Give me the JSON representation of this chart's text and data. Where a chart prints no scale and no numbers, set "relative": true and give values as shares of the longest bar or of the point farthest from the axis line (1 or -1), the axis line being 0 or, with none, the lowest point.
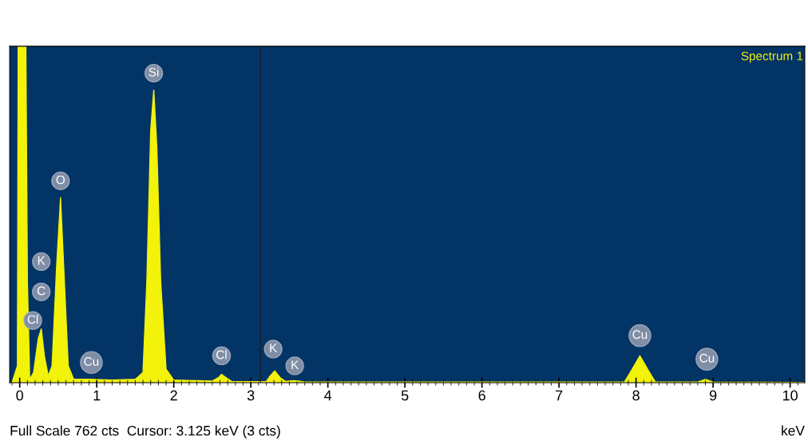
{
  "chart_data": {
    "type": "area",
    "relative": true,
    "xlabel": "keV",
    "color": "#f2f20a",
    "xlim": [
      -0.13,
      10.19
    ],
    "xticks": [
      0,
      1,
      2,
      3,
      4,
      5,
      6,
      7,
      8,
      9,
      10
    ],
    "x": [
      -0.1,
      -0.03,
      -0.02,
      0.08,
      0.1,
      0.13,
      0.18,
      0.24,
      0.28,
      0.32,
      0.37,
      0.42,
      0.48,
      0.53,
      0.58,
      0.63,
      0.7,
      0.9,
      1.2,
      1.5,
      1.6,
      1.65,
      1.7,
      1.74,
      1.78,
      1.83,
      1.9,
      2.0,
      2.5,
      2.58,
      2.62,
      2.68,
      2.75,
      3.2,
      3.25,
      3.31,
      3.38,
      3.45,
      3.55,
      3.62,
      3.7,
      7.85,
      7.95,
      8.05,
      8.15,
      8.25,
      8.8,
      8.9,
      9.0,
      10.19
    ],
    "values": [
      0,
      0.05,
      1,
      1,
      0.3,
      0.01,
      0.03,
      0.13,
      0.16,
      0.08,
      0.02,
      0.05,
      0.35,
      0.55,
      0.3,
      0.05,
      0.01,
      0.01,
      0.008,
      0.01,
      0.03,
      0.3,
      0.75,
      0.87,
      0.7,
      0.3,
      0.04,
      0.008,
      0.005,
      0.015,
      0.025,
      0.015,
      0.004,
      0.003,
      0.02,
      0.035,
      0.015,
      0.004,
      0.006,
      0.005,
      0.002,
      0.002,
      0.04,
      0.08,
      0.04,
      0.002,
      0.002,
      0.01,
      0.002,
      0.001
    ],
    "ref_lines": [
      {
        "axis": "x",
        "value": 3.125,
        "color": "#1a1a2a"
      }
    ],
    "annotations": [
      {
        "text": "Cl",
        "x": 0.17,
        "y": 0.185
      },
      {
        "text": "C",
        "x": 0.28,
        "y": 0.27
      },
      {
        "text": "K",
        "x": 0.28,
        "y": 0.36
      },
      {
        "text": "O",
        "x": 0.53,
        "y": 0.6
      },
      {
        "text": "Cu",
        "x": 0.93,
        "y": 0.06
      },
      {
        "text": "Si",
        "x": 1.74,
        "y": 0.92
      },
      {
        "text": "Cl",
        "x": 2.62,
        "y": 0.08
      },
      {
        "text": "K",
        "x": 3.29,
        "y": 0.1
      },
      {
        "text": "K",
        "x": 3.57,
        "y": 0.05
      },
      {
        "text": "Cu",
        "x": 8.05,
        "y": 0.14
      },
      {
        "text": "Cu",
        "x": 8.92,
        "y": 0.07
      },
      "Spectrum 1",
      "Full Scale 762 cts  Cursor: 3.125 keV (3 cts)"
    ]
  }
}
